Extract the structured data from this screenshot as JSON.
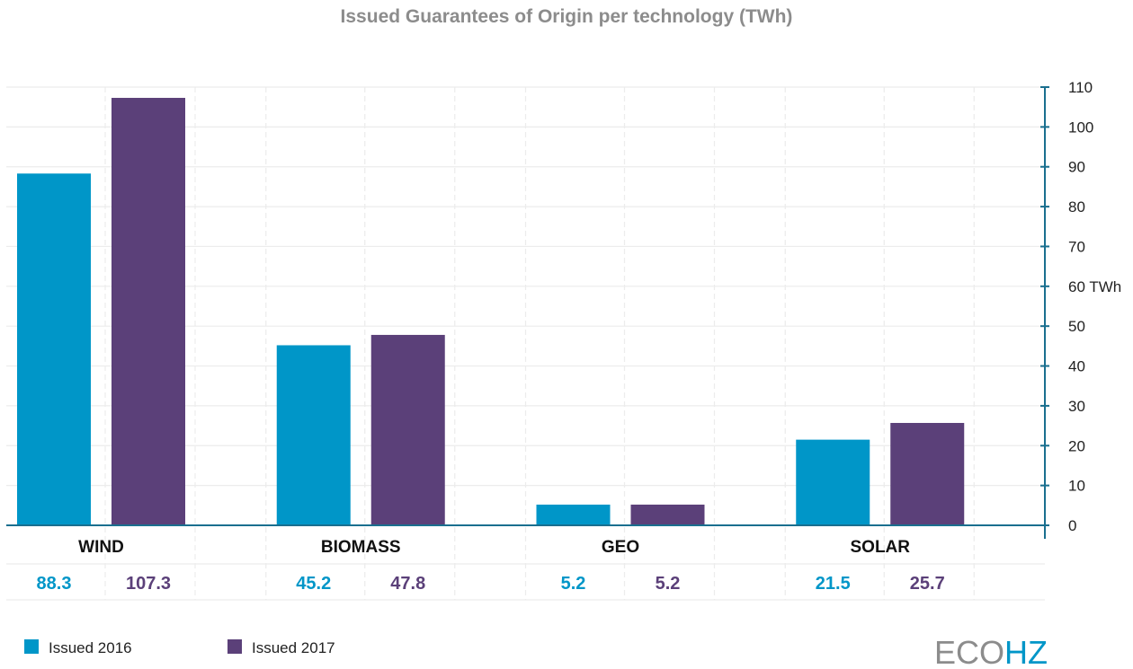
{
  "chart_data": {
    "type": "bar",
    "title": "Issued Guarantees of Origin per technology (TWh)",
    "categories": [
      "WIND",
      "BIOMASS",
      "GEO",
      "SOLAR"
    ],
    "series": [
      {
        "name": "Issued 2016",
        "values": [
          88.3,
          45.2,
          5.2,
          21.5
        ],
        "labels": [
          "88.3",
          "45.2",
          "5.2",
          "21.5"
        ],
        "color": "#0096c8"
      },
      {
        "name": "Issued 2017",
        "values": [
          107.3,
          47.8,
          5.2,
          25.7
        ],
        "labels": [
          "107.3",
          "47.8",
          "5.2",
          "25.7"
        ],
        "color": "#5b4079"
      }
    ],
    "ylim": [
      0,
      110
    ],
    "yticks": [
      0,
      10,
      20,
      30,
      40,
      50,
      60,
      70,
      80,
      90,
      100,
      110
    ],
    "ytick_labels": [
      "0",
      "10",
      "20",
      "30",
      "40",
      "50",
      "60 TWh",
      "70",
      "80",
      "90",
      "100",
      "110"
    ],
    "y_axis_side": "right",
    "grid": true,
    "legend_position": "bottom-left"
  },
  "branding": {
    "logo_part1": "ECO",
    "logo_part2": "HZ",
    "logo_color1": "#8c8c8c",
    "logo_color2": "#0096c8"
  },
  "colors": {
    "axis": "#1a6f8f",
    "grid": "#ececec"
  }
}
